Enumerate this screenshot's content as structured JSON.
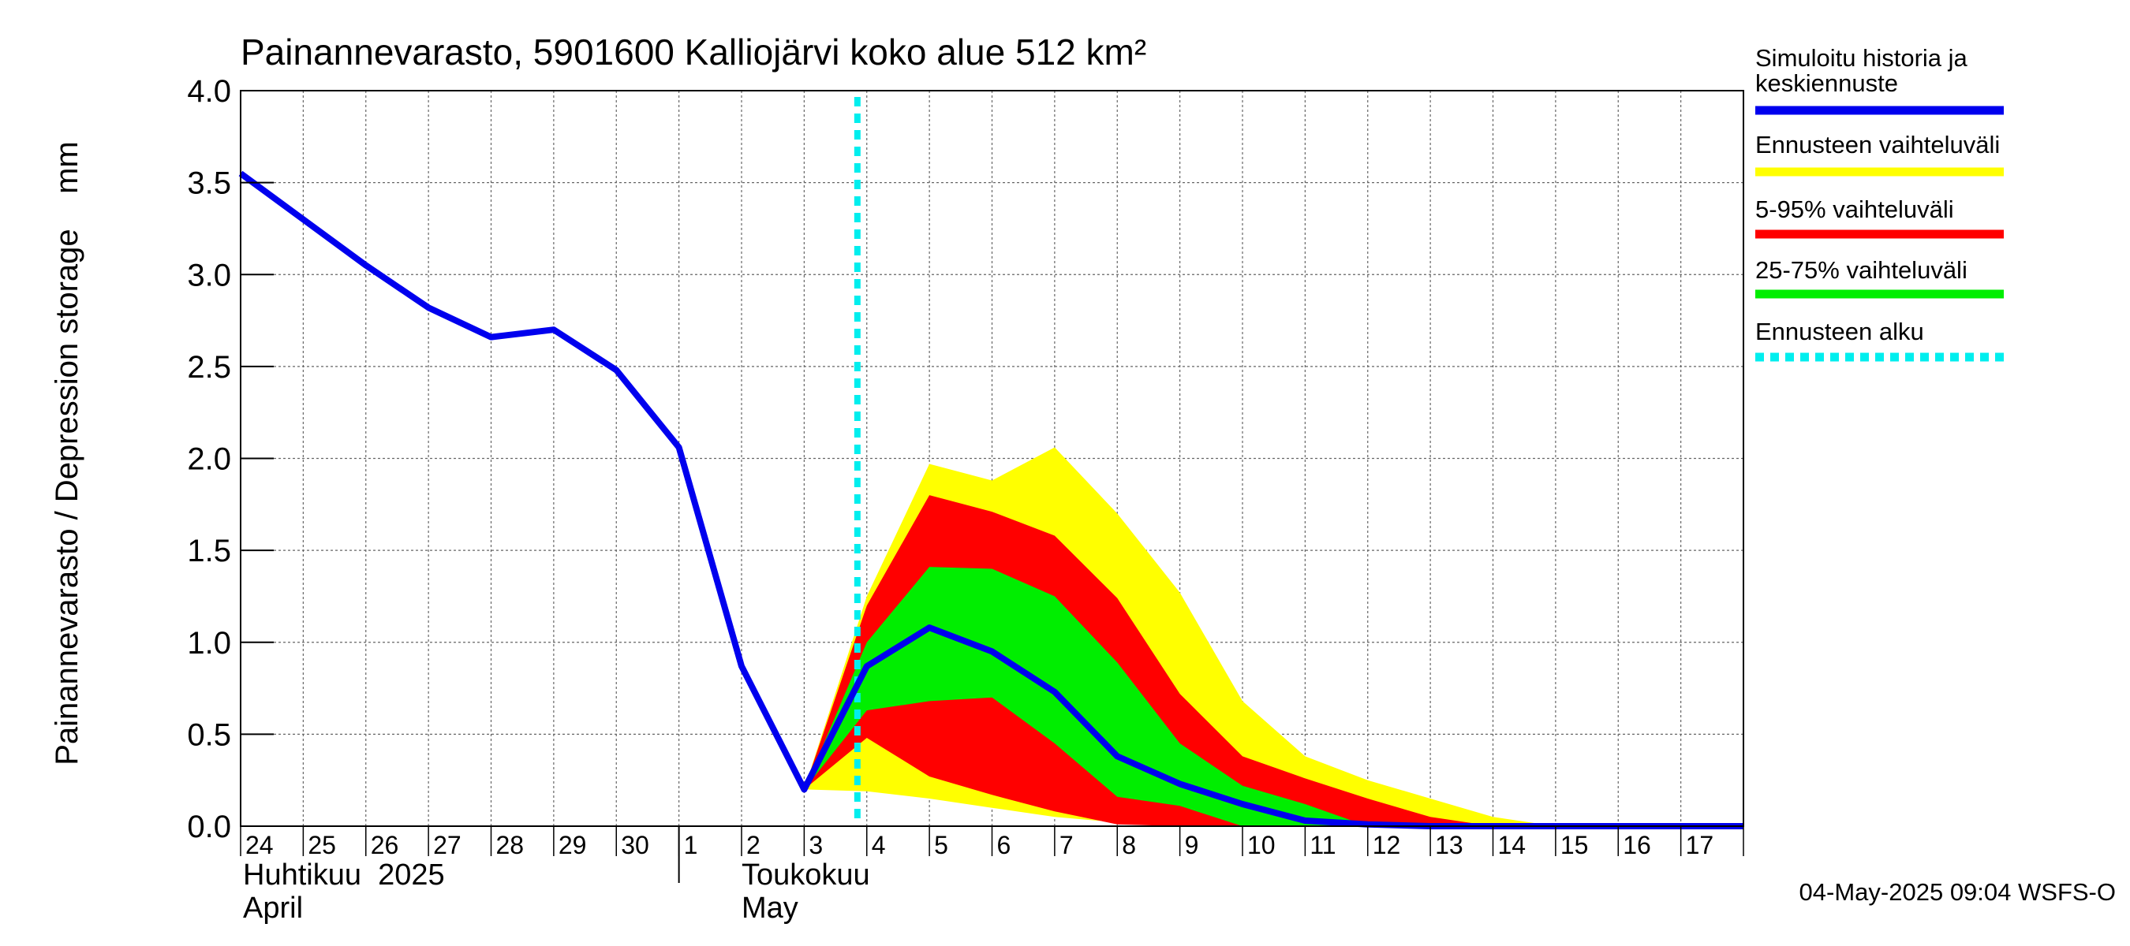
{
  "chart_data": {
    "type": "area",
    "title": "Painannevarasto, 5901600 Kalliojärvi koko alue 512 km²",
    "ylabel": "Painannevarasto / Depression storage    mm",
    "ylim": [
      0,
      4.0
    ],
    "yticks": [
      "0.0",
      "0.5",
      "1.0",
      "1.5",
      "2.0",
      "2.5",
      "3.0",
      "3.5",
      "4.0"
    ],
    "x_start_day": 24,
    "x_end_day": 48,
    "day_labels": [
      "24",
      "25",
      "26",
      "27",
      "28",
      "29",
      "30",
      "1",
      "2",
      "3",
      "4",
      "5",
      "6",
      "7",
      "8",
      "9",
      "10",
      "11",
      "12",
      "13",
      "14",
      "15",
      "16",
      "17"
    ],
    "month_labels": {
      "april_fi": "Huhtikuu  2025",
      "april_en": "April",
      "may_fi": "Toukokuu",
      "may_en": "May"
    },
    "forecast_start_day": 33.85,
    "x": [
      24,
      25,
      26,
      27,
      28,
      29,
      30,
      31,
      32,
      33,
      34,
      35,
      36,
      37,
      38,
      39,
      40,
      41,
      42,
      43,
      44,
      45,
      46,
      47,
      48
    ],
    "series": [
      {
        "name": "Ennusteen vaihteluväli",
        "color": "#ffff00",
        "lower": [
          null,
          null,
          null,
          null,
          null,
          null,
          null,
          null,
          null,
          0.2,
          0.19,
          0.15,
          0.1,
          0.05,
          0.02,
          0.0,
          0.0,
          0.0,
          0.0,
          0.0,
          0.0,
          0.0,
          0.0,
          0.0,
          0.0
        ],
        "upper": [
          null,
          null,
          null,
          null,
          null,
          null,
          null,
          null,
          null,
          0.2,
          1.25,
          1.97,
          1.88,
          2.06,
          1.7,
          1.27,
          0.68,
          0.38,
          0.25,
          0.15,
          0.05,
          0.0,
          0.0,
          0.0,
          0.0
        ]
      },
      {
        "name": "5-95% vaihteluväli",
        "color": "#ff0000",
        "lower": [
          null,
          null,
          null,
          null,
          null,
          null,
          null,
          null,
          null,
          0.2,
          0.48,
          0.27,
          0.17,
          0.08,
          0.01,
          0.0,
          0.0,
          0.0,
          0.0,
          0.0,
          0.0,
          0.0,
          0.0,
          0.0,
          0.0
        ],
        "upper": [
          null,
          null,
          null,
          null,
          null,
          null,
          null,
          null,
          null,
          0.2,
          1.2,
          1.8,
          1.71,
          1.58,
          1.24,
          0.72,
          0.38,
          0.26,
          0.15,
          0.05,
          0.0,
          0.0,
          0.0,
          0.0,
          0.0
        ]
      },
      {
        "name": "25-75% vaihteluväli",
        "color": "#00ee00",
        "lower": [
          null,
          null,
          null,
          null,
          null,
          null,
          null,
          null,
          null,
          0.2,
          0.63,
          0.68,
          0.7,
          0.45,
          0.16,
          0.11,
          0.0,
          0.0,
          0.0,
          0.0,
          0.0,
          0.0,
          0.0,
          0.0,
          0.0
        ],
        "upper": [
          null,
          null,
          null,
          null,
          null,
          null,
          null,
          null,
          null,
          0.2,
          1.0,
          1.41,
          1.4,
          1.25,
          0.89,
          0.45,
          0.22,
          0.12,
          0.0,
          0.0,
          0.0,
          0.0,
          0.0,
          0.0,
          0.0
        ]
      },
      {
        "name": "Simuloitu historia ja keskiennuste",
        "color": "#0000ee",
        "values": [
          3.55,
          3.3,
          3.05,
          2.82,
          2.66,
          2.7,
          2.48,
          2.06,
          0.87,
          0.2,
          0.87,
          1.08,
          0.95,
          0.73,
          0.38,
          0.23,
          0.12,
          0.03,
          0.01,
          0.0,
          0.0,
          0.0,
          0.0,
          0.0,
          0.0
        ]
      }
    ],
    "legend": [
      {
        "label_lines": [
          "Simuloitu historia ja",
          "keskiennuste"
        ],
        "color": "#0000ee",
        "style": "solid"
      },
      {
        "label_lines": [
          "Ennusteen vaihteluväli"
        ],
        "color": "#ffff00",
        "style": "solid"
      },
      {
        "label_lines": [
          "5-95% vaihteluväli"
        ],
        "color": "#ff0000",
        "style": "solid"
      },
      {
        "label_lines": [
          "25-75% vaihteluväli"
        ],
        "color": "#00ee00",
        "style": "solid"
      },
      {
        "label_lines": [
          "Ennusteen alku"
        ],
        "color": "#00eeee",
        "style": "dashed"
      }
    ],
    "legend_position": "right",
    "grid": true
  },
  "footer": {
    "timestamp": "04-May-2025 09:04 WSFS-O"
  }
}
